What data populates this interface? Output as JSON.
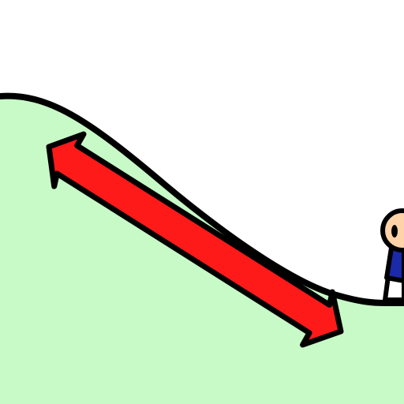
{
  "scene": {
    "colors": {
      "sky": "#ffffff",
      "hill_fill": "#c8fac8",
      "outline": "#000000",
      "arrow_fill": "#ff1a1a",
      "skin": "#ffd2a8",
      "shirt": "#1a2aa8",
      "eye": "#000000"
    },
    "icons": {
      "hill": "hill-slope",
      "arrow": "double-headed-arrow",
      "character": "stick-character"
    }
  }
}
